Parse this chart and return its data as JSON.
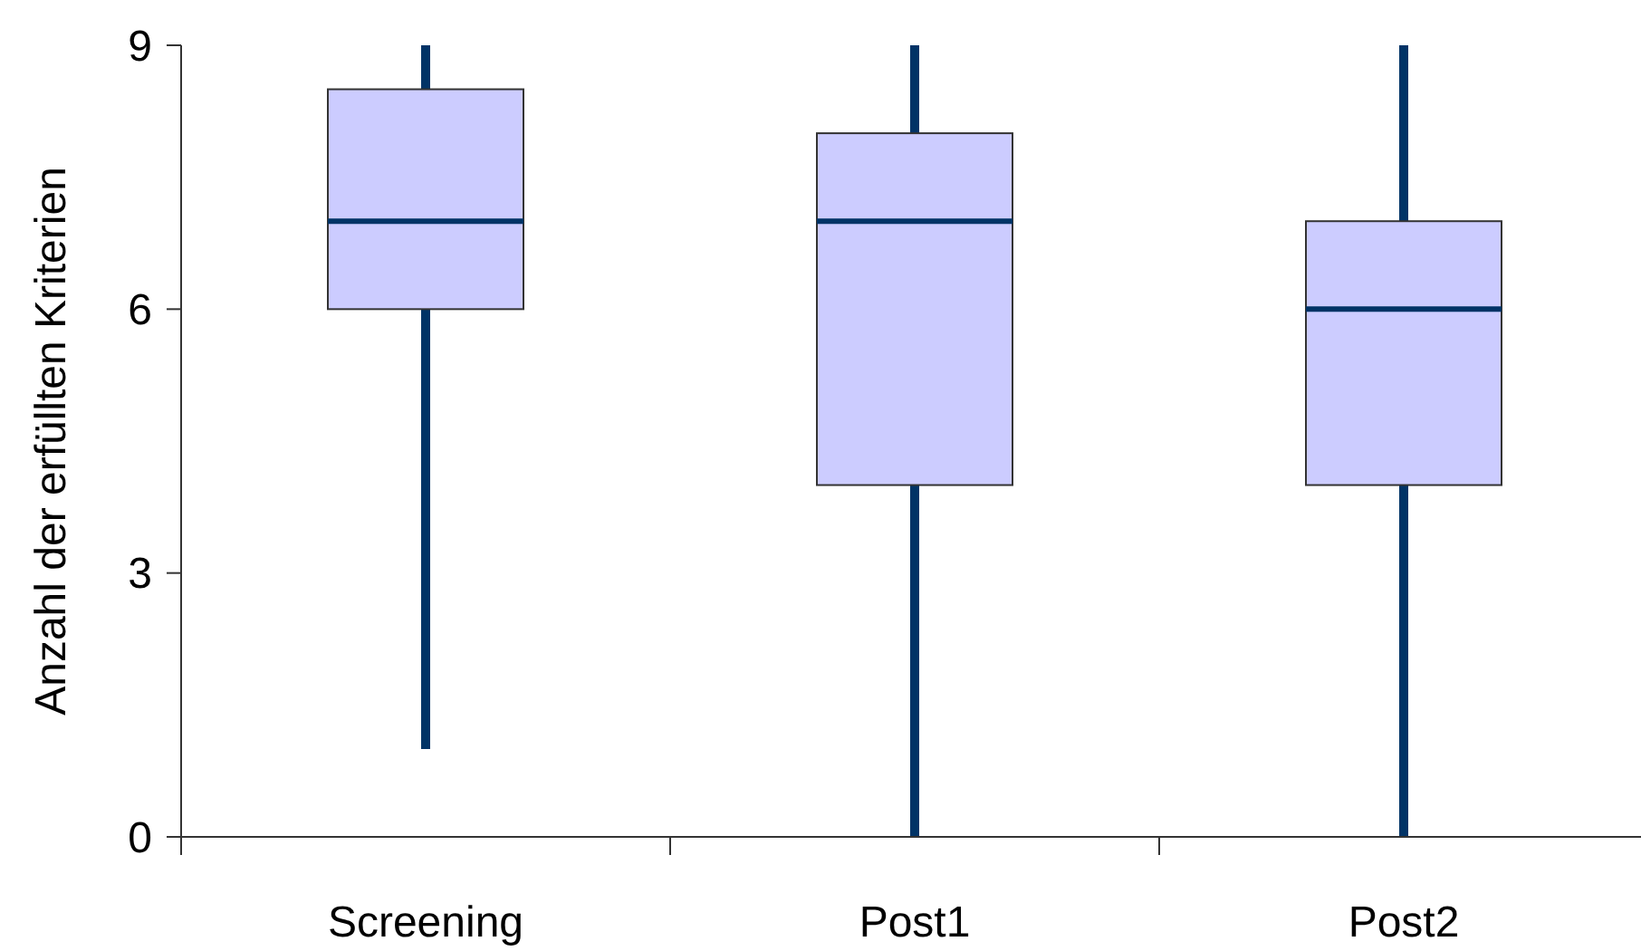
{
  "chart_data": {
    "type": "box",
    "ylabel": "Anzahl der erfüllten Kriterien",
    "categories": [
      "Screening",
      "Post1",
      "Post2"
    ],
    "color": "#ccccff",
    "ylim": [
      0,
      9
    ],
    "yticks": [
      0,
      3,
      6,
      9
    ],
    "grid": false,
    "boxes": [
      {
        "low": 1,
        "q1": 6,
        "median": 7,
        "q3": 8.5,
        "high": 9
      },
      {
        "low": 0,
        "q1": 4,
        "median": 7,
        "q3": 8,
        "high": 9
      },
      {
        "low": 0,
        "q1": 4,
        "median": 6,
        "q3": 7,
        "high": 9
      }
    ]
  }
}
